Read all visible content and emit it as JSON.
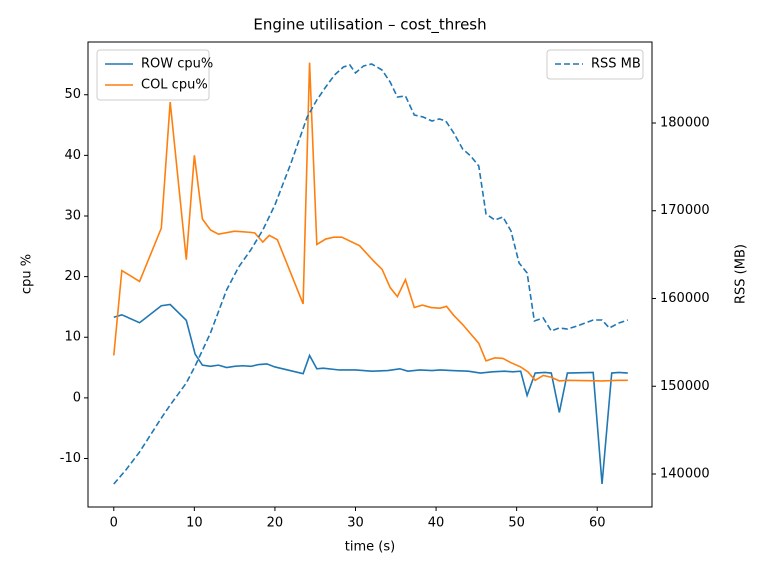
{
  "chart_data": {
    "type": "line",
    "title": "Engine utilisation – cost_thresh",
    "xlabel": "time (s)",
    "ylabel": "cpu %",
    "y2label": "RSS (MB)",
    "xlim": [
      -3.2,
      66.8
    ],
    "ylim": [
      -18,
      58.7
    ],
    "y2lim": [
      136240,
      189230
    ],
    "xticks": [
      0,
      10,
      20,
      30,
      40,
      50,
      60
    ],
    "yticks": [
      -10,
      0,
      10,
      20,
      30,
      40,
      50
    ],
    "y2ticks": [
      140000,
      150000,
      160000,
      170000,
      180000
    ],
    "legend": "upper left",
    "legend2": "upper right",
    "series": [
      {
        "name": "ROW cpu%",
        "color": "#1f77b4",
        "linestyle": "solid",
        "axis": "y",
        "x": [
          0,
          1,
          3.2,
          5.9,
          7,
          9,
          10.1,
          11,
          12,
          13,
          14,
          15,
          16,
          17,
          18,
          19,
          20,
          23.5,
          24.3,
          25.2,
          26,
          28,
          30,
          32,
          34,
          35.5,
          36.5,
          38,
          39.5,
          40.5,
          42,
          44,
          45.5,
          47,
          48.5,
          49.5,
          50.5,
          51.3,
          52.3,
          53.5,
          54.3,
          55.3,
          56.3,
          59.5,
          60.6,
          61.8,
          62.7,
          63.8
        ],
        "values": [
          13.3,
          13.7,
          12.4,
          15.2,
          15.4,
          12.8,
          7.2,
          5.4,
          5.2,
          5.4,
          5.0,
          5.2,
          5.3,
          5.2,
          5.5,
          5.6,
          5.1,
          4.0,
          7.0,
          4.8,
          4.9,
          4.6,
          4.6,
          4.4,
          4.5,
          4.8,
          4.4,
          4.6,
          4.5,
          4.6,
          4.5,
          4.4,
          4.1,
          4.3,
          4.4,
          4.3,
          4.4,
          0.4,
          4.1,
          4.2,
          4.1,
          -2.4,
          4.1,
          4.2,
          -14.2,
          4.1,
          4.2,
          4.1
        ]
      },
      {
        "name": "COL cpu%",
        "color": "#ff7f0e",
        "linestyle": "solid",
        "axis": "y",
        "x": [
          0,
          1,
          3.2,
          5.9,
          7,
          9,
          10,
          11,
          12,
          13,
          15,
          17,
          17.5,
          18.5,
          19.3,
          20.3,
          23.5,
          24.3,
          25.2,
          26.3,
          27.3,
          28.3,
          30.5,
          32.3,
          33.3,
          34.3,
          35.2,
          36.2,
          37.3,
          38.3,
          39.4,
          40.5,
          41.3,
          42.2,
          43.3,
          45.3,
          46.2,
          47.3,
          48.3,
          49.3,
          50.5,
          51.4,
          52.3,
          53.3,
          54.3,
          55.3,
          56.3,
          60.6,
          62.7,
          63.8
        ],
        "values": [
          7,
          21,
          19.2,
          28,
          48.8,
          22.8,
          40,
          29.5,
          27.7,
          27,
          27.5,
          27.3,
          27.2,
          25.7,
          26.8,
          26.1,
          15.5,
          55.3,
          25.3,
          26.2,
          26.5,
          26.5,
          25.1,
          22.5,
          21.2,
          18.2,
          16.7,
          19.5,
          14.9,
          15.3,
          14.9,
          14.8,
          15.1,
          13.6,
          12.1,
          9.0,
          6.1,
          6.6,
          6.5,
          5.8,
          5.1,
          4.3,
          2.9,
          3.7,
          3.4,
          2.8,
          2.9,
          2.8,
          2.9,
          2.9
        ]
      },
      {
        "name": "RSS MB",
        "color": "#1f77b4",
        "linestyle": "dashed",
        "axis": "y2",
        "x": [
          0,
          1.5,
          3.2,
          5.9,
          7,
          9,
          10.1,
          12,
          14,
          15.5,
          17,
          18.5,
          20,
          22,
          24,
          25.2,
          26.3,
          27.4,
          28.5,
          29.3,
          30,
          31,
          32,
          33.3,
          34.3,
          35.2,
          36.2,
          37.3,
          38.4,
          39.5,
          40.4,
          41.2,
          42.2,
          43.3,
          44.3,
          45.3,
          46.2,
          47.3,
          48.3,
          49.3,
          50.3,
          51.3,
          52.2,
          53.3,
          54.3,
          55.3,
          56.3,
          57.5,
          58.5,
          59.5,
          60.6,
          61.5,
          62.7,
          63.8
        ],
        "values": [
          138860,
          140460,
          142510,
          146380,
          147860,
          150370,
          152310,
          156070,
          160970,
          163590,
          165530,
          167810,
          170660,
          175440,
          180680,
          182620,
          184100,
          185470,
          186380,
          186610,
          185700,
          186500,
          186720,
          186040,
          184670,
          182960,
          183080,
          180910,
          180680,
          180230,
          180460,
          180230,
          178860,
          177040,
          176240,
          175100,
          169630,
          168950,
          169290,
          167690,
          164050,
          162910,
          157440,
          157780,
          156300,
          156640,
          156520,
          156870,
          157210,
          157550,
          157550,
          156640,
          157210,
          157550
        ]
      }
    ]
  }
}
